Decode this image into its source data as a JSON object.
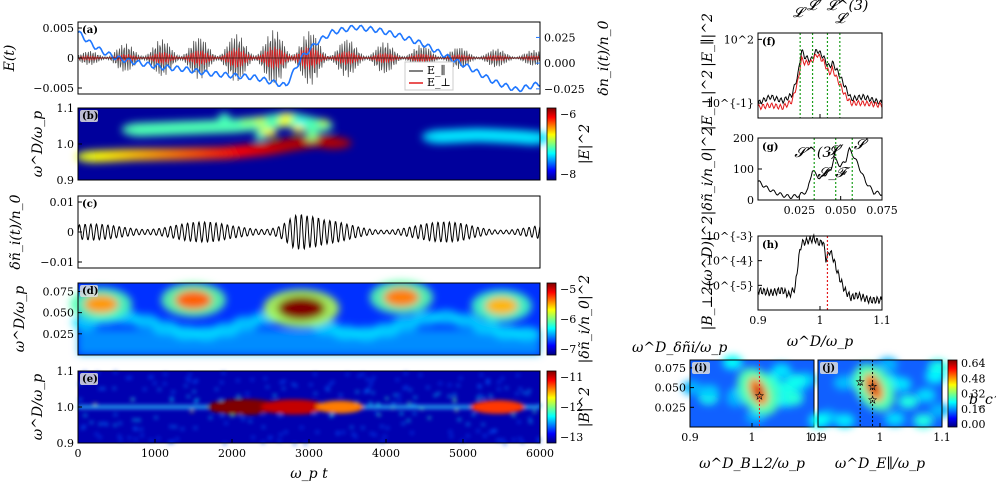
{
  "colors": {
    "grey": "#555555",
    "red": "#e31a1c",
    "blue": "#1f77ff",
    "green": "#1a9e1a",
    "black": "#000000"
  },
  "chart_data": [
    {
      "id": "a",
      "type": "line",
      "panel_label": "(a)",
      "ylabel": "E(t)",
      "ylabel2": "δn_i(t)/n_0",
      "xlim": [
        0,
        6000
      ],
      "ylim": [
        -0.006,
        0.006
      ],
      "ylim2": [
        -0.03,
        0.04
      ],
      "yticks": [
        "0.005",
        "0",
        "−0.005"
      ],
      "yticks2": [
        "0.025",
        "0.000",
        "−0.025"
      ],
      "legend": [
        "E_∥",
        "E_⊥"
      ],
      "legend_position": "lower-right",
      "series": [
        {
          "name": "E_∥",
          "color": "#555555",
          "envelope": {
            "x": [
              0,
              400,
              900,
              1500,
              2000,
              2500,
              2700,
              2900,
              3200,
              3600,
              4200,
              5000,
              6000
            ],
            "y": [
              0.0008,
              0.002,
              0.003,
              0.0035,
              0.004,
              0.0045,
              0.0055,
              0.005,
              0.004,
              0.003,
              0.0025,
              0.0018,
              0.0013
            ]
          }
        },
        {
          "name": "E_⊥",
          "color": "#e31a1c",
          "envelope": {
            "x": [
              0,
              500,
              1000,
              1600,
              2100,
              2600,
              2800,
              3000,
              3500,
              4000,
              5000,
              6000
            ],
            "y": [
              0.0003,
              0.0006,
              0.001,
              0.0014,
              0.0018,
              0.002,
              0.0032,
              0.002,
              0.0012,
              0.0009,
              0.0006,
              0.0004
            ]
          }
        },
        {
          "name": "δn_i(t)/n_0",
          "color": "#1f77ff",
          "axis": "right",
          "x": [
            0,
            150,
            300,
            500,
            800,
            1100,
            1400,
            1700,
            2000,
            2300,
            2500,
            2700,
            2900,
            3100,
            3300,
            3600,
            3900,
            4200,
            4500,
            4800,
            5100,
            5400,
            5700,
            6000
          ],
          "y": [
            0.03,
            0.02,
            0.012,
            0.005,
            0.0,
            -0.004,
            -0.006,
            -0.01,
            -0.012,
            -0.014,
            -0.018,
            -0.022,
            0.005,
            0.02,
            0.03,
            0.035,
            0.032,
            0.026,
            0.018,
            0.006,
            -0.005,
            -0.018,
            -0.026,
            -0.02
          ]
        }
      ]
    },
    {
      "id": "b",
      "type": "heatmap",
      "panel_label": "(b)",
      "ylabel": "ω^D/ω_p",
      "xlim": [
        0,
        6000
      ],
      "ylim": [
        0.9,
        1.1
      ],
      "yticks": [
        "1.1",
        "1.0",
        "0.9"
      ],
      "colorbar": {
        "label": "|E|^2",
        "range": [
          -9,
          -5.5
        ],
        "ticks": [
          "−6",
          "−8"
        ]
      },
      "ridges": [
        {
          "x": [
            200,
            700,
            1300,
            1900,
            2400,
            2800,
            3100,
            3400
          ],
          "y": [
            0.965,
            0.97,
            0.972,
            0.975,
            0.985,
            1.0,
            1.01,
            1.0
          ]
        },
        {
          "x": [
            800,
            1400,
            2000,
            2500,
            2700,
            2900,
            3100
          ],
          "y": [
            1.04,
            1.045,
            1.05,
            1.06,
            1.07,
            1.06,
            1.05
          ]
        },
        {
          "x": [
            4700,
            5200,
            5700,
            6000
          ],
          "y": [
            1.02,
            1.025,
            1.02,
            1.015
          ]
        }
      ]
    },
    {
      "id": "c",
      "type": "line",
      "panel_label": "(c)",
      "ylabel": "δñ_i(t)/n_0",
      "xlim": [
        0,
        6000
      ],
      "ylim": [
        -0.012,
        0.012
      ],
      "yticks": [
        "0.01",
        "0",
        "−0.01"
      ],
      "series": [
        {
          "name": "",
          "color": "#000000",
          "envelope": {
            "x": [
              0,
              500,
              1000,
              1500,
              2000,
              2400,
              2600,
              2700,
              2800,
              2900,
              3000,
              3200,
              3500,
              4000,
              4500,
              5000,
              5500,
              6000
            ],
            "y": [
              0.0025,
              0.003,
              0.0045,
              0.0035,
              0.003,
              0.004,
              0.006,
              0.008,
              0.0095,
              0.008,
              0.006,
              0.004,
              0.0035,
              0.003,
              0.0032,
              0.0035,
              0.003,
              0.0028
            ]
          }
        }
      ]
    },
    {
      "id": "d",
      "type": "heatmap",
      "panel_label": "(d)",
      "ylabel": "ω^D/ω_p",
      "xlim": [
        0,
        6000
      ],
      "ylim": [
        0.0,
        0.085
      ],
      "yticks": [
        "0.075",
        "0.050",
        "0.025"
      ],
      "colorbar": {
        "label": "|δñ_i/n_0|^2",
        "range": [
          -7,
          -5
        ],
        "ticks": [
          "−5",
          "−6",
          "−7"
        ]
      },
      "blobs": [
        {
          "x": 2900,
          "y": 0.055,
          "level": 1.0
        },
        {
          "x": 1500,
          "y": 0.065,
          "level": 0.6
        },
        {
          "x": 4200,
          "y": 0.068,
          "level": 0.55
        },
        {
          "x": 300,
          "y": 0.06,
          "level": 0.5
        },
        {
          "x": 5500,
          "y": 0.058,
          "level": 0.45
        }
      ]
    },
    {
      "id": "e",
      "type": "heatmap",
      "panel_label": "(e)",
      "ylabel": "ω^D/ω_p",
      "xlabel": "ω_p t",
      "xlim": [
        0,
        6000
      ],
      "ylim": [
        0.9,
        1.1
      ],
      "xticks": [
        "0",
        "1000",
        "2000",
        "3000",
        "4000",
        "5000",
        "6000"
      ],
      "yticks": [
        "1.1",
        "1.0",
        "0.9"
      ],
      "colorbar": {
        "label": "|B|^2",
        "range": [
          -13,
          -11
        ],
        "ticks": [
          "−11",
          "−12",
          "−13"
        ]
      },
      "hot_spots": [
        {
          "x": 2150,
          "level": 1.0
        },
        {
          "x": 2800,
          "level": 0.85
        },
        {
          "x": 5450,
          "level": 0.6
        },
        {
          "x": 3400,
          "level": 0.45
        }
      ]
    },
    {
      "id": "f",
      "type": "line",
      "panel_label": "(f)",
      "ylabel": "|E_∥|^2",
      "ylabel2": "|E_⊥|^2",
      "xlim": [
        0.9,
        1.1
      ],
      "ylim_log10": [
        -1.7,
        2.3
      ],
      "yscale": "log",
      "yticks": [
        "10^2",
        "10^{-1}"
      ],
      "vlines": [
        0.968,
        0.988,
        1.012,
        1.032
      ],
      "annotations": [
        "𝓛",
        "𝓛″",
        "𝓛^(3)",
        "𝓛′"
      ],
      "series": [
        {
          "name": "|E_∥|^2",
          "color": "#000000",
          "x": [
            0.9,
            0.92,
            0.94,
            0.955,
            0.965,
            0.97,
            0.975,
            0.985,
            0.995,
            1.005,
            1.01,
            1.015,
            1.02,
            1.03,
            1.04,
            1.05,
            1.07,
            1.1
          ],
          "y_log10": [
            -1.0,
            -0.7,
            -0.9,
            -0.6,
            0.4,
            1.5,
            1.2,
            1.0,
            1.5,
            1.2,
            0.9,
            0.7,
            0.9,
            0.4,
            -0.2,
            -0.8,
            -0.7,
            -1.0
          ]
        },
        {
          "name": "|E_⊥|^2",
          "color": "#e31a1c",
          "x": [
            0.9,
            0.92,
            0.94,
            0.955,
            0.965,
            0.97,
            0.975,
            0.985,
            0.995,
            1.005,
            1.01,
            1.015,
            1.02,
            1.03,
            1.04,
            1.05,
            1.07,
            1.1
          ],
          "y_log10": [
            -1.2,
            -1.1,
            -1.2,
            -0.9,
            0.1,
            1.1,
            0.9,
            0.9,
            1.3,
            1.0,
            0.7,
            0.4,
            0.6,
            0.0,
            -0.6,
            -1.0,
            -1.0,
            -1.1
          ]
        }
      ]
    },
    {
      "id": "g",
      "type": "line",
      "panel_label": "(g)",
      "ylabel": "|δñ_i/n_0|^2",
      "xlim": [
        0.0,
        0.075
      ],
      "ylim": [
        0,
        200
      ],
      "xticks": [
        "0.025",
        "0.050",
        "0.075"
      ],
      "yticks": [
        "200",
        "100",
        "0"
      ],
      "vlines": [
        0.034,
        0.047,
        0.057
      ],
      "annotations": [
        "𝓢^(3)",
        "𝓢_𝓕",
        "𝓢″",
        "𝓢′"
      ],
      "series": [
        {
          "name": "",
          "color": "#000000",
          "x": [
            0,
            0.005,
            0.01,
            0.015,
            0.02,
            0.025,
            0.03,
            0.033,
            0.035,
            0.038,
            0.041,
            0.044,
            0.046,
            0.048,
            0.05,
            0.053,
            0.055,
            0.057,
            0.06,
            0.065,
            0.07,
            0.075
          ],
          "y": [
            60,
            40,
            25,
            15,
            10,
            15,
            30,
            100,
            80,
            70,
            85,
            95,
            140,
            120,
            110,
            125,
            165,
            150,
            120,
            60,
            25,
            20
          ]
        }
      ]
    },
    {
      "id": "h",
      "type": "line",
      "panel_label": "(h)",
      "ylabel": "|B_⊥2(ω^D)|^2",
      "xlabel": "ω^D/ω_p",
      "xlim": [
        0.9,
        1.1
      ],
      "ylim_log10": [
        -6,
        -3
      ],
      "yscale": "log",
      "xticks": [
        "0.9",
        "1",
        "1.1"
      ],
      "yticks": [
        "10^{-3}",
        "10^{-4}",
        "10^{-5}"
      ],
      "vlines": [
        1.012
      ],
      "series": [
        {
          "name": "",
          "color": "#000000",
          "x": [
            0.9,
            0.92,
            0.94,
            0.95,
            0.96,
            0.965,
            0.97,
            0.98,
            0.99,
            1.0,
            1.005,
            1.01,
            1.015,
            1.02,
            1.03,
            1.04,
            1.05,
            1.06,
            1.08,
            1.1
          ],
          "y_log10": [
            -5.2,
            -5.3,
            -5.2,
            -5.4,
            -5.1,
            -4.0,
            -3.3,
            -3.2,
            -3.1,
            -3.3,
            -3.2,
            -4.0,
            -3.6,
            -3.8,
            -4.6,
            -5.2,
            -5.5,
            -5.4,
            -5.6,
            -5.6
          ]
        }
      ]
    },
    {
      "id": "i",
      "type": "heatmap",
      "panel_label": "(i)",
      "ylabel": "ω^D_δñi/ω_p",
      "xlabel": "ω^D_B⊥2/ω_p",
      "xlim": [
        0.9,
        1.1
      ],
      "ylim": [
        0.0,
        0.085
      ],
      "xticks": [
        "0.9",
        "1",
        "1.1"
      ],
      "yticks": [
        "0.075",
        "0.050",
        "0.025"
      ],
      "vlines": [
        1.012
      ],
      "markers": [
        {
          "x": 1.012,
          "y": 0.04
        }
      ],
      "peak": {
        "x": 1.01,
        "y": 0.045
      }
    },
    {
      "id": "j",
      "type": "heatmap",
      "panel_label": "(j)",
      "xlabel": "ω^D_E∥/ω_p",
      "xlim": [
        0.9,
        1.1
      ],
      "ylim": [
        0.0,
        0.085
      ],
      "xticks": [
        "0.9",
        "1",
        "1.1"
      ],
      "vlines": [
        0.968,
        0.988
      ],
      "markers": [
        {
          "x": 0.968,
          "y": 0.058
        },
        {
          "x": 0.988,
          "y": 0.052
        },
        {
          "x": 0.988,
          "y": 0.035
        }
      ],
      "peak": {
        "x": 0.99,
        "y": 0.05
      },
      "colorbar": {
        "label": "b_c^2",
        "range": [
          0,
          0.7
        ],
        "ticks": [
          "0.64",
          "0.48",
          "0.32",
          "0.16",
          "0.00"
        ]
      }
    }
  ]
}
